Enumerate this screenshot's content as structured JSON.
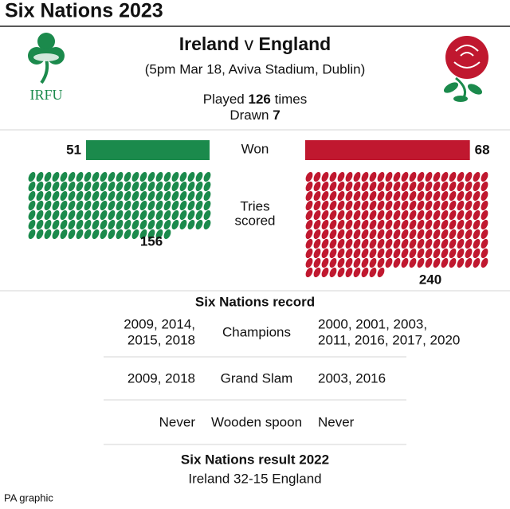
{
  "header": {
    "title": "Six Nations 2023"
  },
  "match": {
    "home": "Ireland",
    "separator": "v",
    "away": "England",
    "details": "(5pm Mar 18, Aviva Stadium, Dublin)"
  },
  "logos": {
    "home": "IRFU"
  },
  "head_to_head": {
    "played_label": "Played",
    "played": 126,
    "played_unit": "times",
    "drawn_label": "Drawn",
    "drawn": 7,
    "won": {
      "label": "Won",
      "home": 51,
      "away": 68,
      "home_color": "#1b8a4c",
      "away_color": "#c0182f"
    },
    "tries": {
      "label_lines": [
        "Tries",
        "scored"
      ],
      "home": 156,
      "away": 240
    }
  },
  "record": {
    "title": "Six Nations record",
    "rows": [
      {
        "home": [
          "2009, 2014,",
          "2015, 2018"
        ],
        "label": "Champions",
        "away": [
          "2000, 2001, 2003,",
          "2011, 2016, 2017, 2020"
        ]
      },
      {
        "home": [
          "2009, 2018"
        ],
        "label": "Grand Slam",
        "away": [
          "2003, 2016"
        ]
      },
      {
        "home": [
          "Never"
        ],
        "label": "Wooden spoon",
        "away": [
          "Never"
        ]
      }
    ]
  },
  "result": {
    "title": "Six Nations result 2022",
    "text": "Ireland 32-15 England"
  },
  "footer": {
    "credit": "PA graphic"
  }
}
